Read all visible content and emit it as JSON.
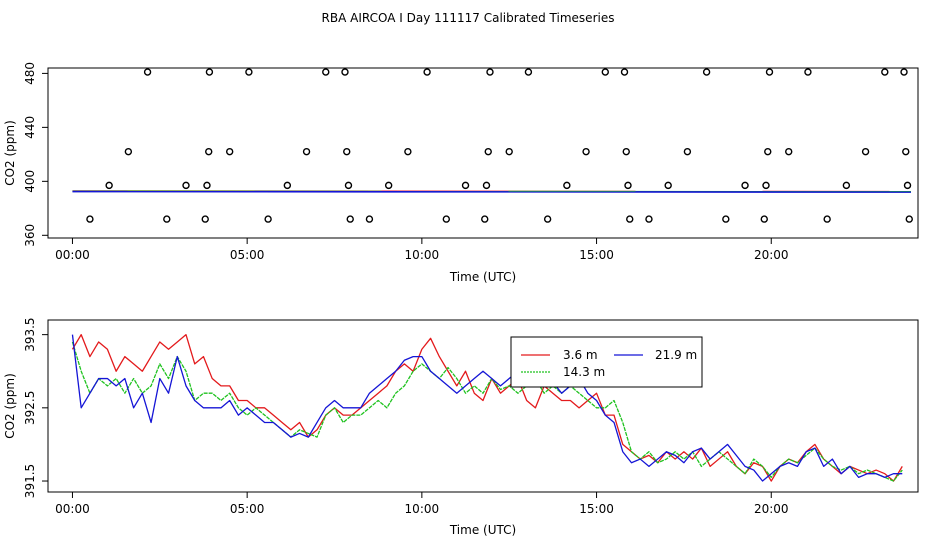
{
  "title": "RBA AIRCOA I  Day 111117  Calibrated Timeseries",
  "colors": {
    "red": "#e31a1c",
    "green": "#1fc21f",
    "blue": "#1515d6",
    "black": "#000000"
  },
  "chart_data": [
    {
      "type": "scatter",
      "xlabel": "Time (UTC)",
      "ylabel": "CO2 (ppm)",
      "xlim": [
        -0.7,
        24.2
      ],
      "ylim": [
        358,
        484
      ],
      "xticks": [
        0,
        5,
        10,
        15,
        20
      ],
      "xtick_labels": [
        "00:00",
        "05:00",
        "10:00",
        "15:00",
        "20:00"
      ],
      "yticks": [
        360,
        400,
        440,
        480
      ],
      "yticks_labels": [
        "360",
        "400",
        "440",
        "480"
      ],
      "points": [
        {
          "x": 0.5,
          "y": 372
        },
        {
          "x": 1.05,
          "y": 397
        },
        {
          "x": 1.6,
          "y": 422
        },
        {
          "x": 2.15,
          "y": 481
        },
        {
          "x": 2.7,
          "y": 372
        },
        {
          "x": 3.25,
          "y": 397
        },
        {
          "x": 3.8,
          "y": 372
        },
        {
          "x": 3.85,
          "y": 397
        },
        {
          "x": 3.9,
          "y": 422
        },
        {
          "x": 3.92,
          "y": 481
        },
        {
          "x": 4.5,
          "y": 422
        },
        {
          "x": 5.05,
          "y": 481
        },
        {
          "x": 5.6,
          "y": 372
        },
        {
          "x": 6.15,
          "y": 397
        },
        {
          "x": 6.7,
          "y": 422
        },
        {
          "x": 7.25,
          "y": 481
        },
        {
          "x": 7.8,
          "y": 481
        },
        {
          "x": 7.85,
          "y": 422
        },
        {
          "x": 7.9,
          "y": 397
        },
        {
          "x": 7.95,
          "y": 372
        },
        {
          "x": 8.5,
          "y": 372
        },
        {
          "x": 9.05,
          "y": 397
        },
        {
          "x": 9.6,
          "y": 422
        },
        {
          "x": 10.15,
          "y": 481
        },
        {
          "x": 10.7,
          "y": 372
        },
        {
          "x": 11.25,
          "y": 397
        },
        {
          "x": 11.8,
          "y": 372
        },
        {
          "x": 11.85,
          "y": 397
        },
        {
          "x": 11.9,
          "y": 422
        },
        {
          "x": 11.95,
          "y": 481
        },
        {
          "x": 12.5,
          "y": 422
        },
        {
          "x": 13.05,
          "y": 481
        },
        {
          "x": 13.6,
          "y": 372
        },
        {
          "x": 14.15,
          "y": 397
        },
        {
          "x": 14.7,
          "y": 422
        },
        {
          "x": 15.25,
          "y": 481
        },
        {
          "x": 15.8,
          "y": 481
        },
        {
          "x": 15.85,
          "y": 422
        },
        {
          "x": 15.9,
          "y": 397
        },
        {
          "x": 15.95,
          "y": 372
        },
        {
          "x": 16.5,
          "y": 372
        },
        {
          "x": 17.05,
          "y": 397
        },
        {
          "x": 17.6,
          "y": 422
        },
        {
          "x": 18.15,
          "y": 481
        },
        {
          "x": 18.7,
          "y": 372
        },
        {
          "x": 19.25,
          "y": 397
        },
        {
          "x": 19.8,
          "y": 372
        },
        {
          "x": 19.85,
          "y": 397
        },
        {
          "x": 19.9,
          "y": 422
        },
        {
          "x": 19.95,
          "y": 481
        },
        {
          "x": 20.5,
          "y": 422
        },
        {
          "x": 21.05,
          "y": 481
        },
        {
          "x": 21.6,
          "y": 372
        },
        {
          "x": 22.15,
          "y": 397
        },
        {
          "x": 22.7,
          "y": 422
        },
        {
          "x": 23.25,
          "y": 481
        },
        {
          "x": 23.8,
          "y": 481
        },
        {
          "x": 23.85,
          "y": 422
        },
        {
          "x": 23.9,
          "y": 397
        },
        {
          "x": 23.95,
          "y": 372
        }
      ],
      "lines": [
        {
          "name": "3.6 m",
          "color": "red",
          "x": [
            0,
            24
          ],
          "y": [
            392.8,
            392.3
          ]
        },
        {
          "name": "14.3 m",
          "color": "green",
          "x": [
            0,
            24
          ],
          "y": [
            392.6,
            392.2
          ]
        },
        {
          "name": "21.9 m",
          "color": "blue",
          "x": [
            0,
            24
          ],
          "y": [
            392.4,
            392.0
          ]
        }
      ]
    },
    {
      "type": "line",
      "xlabel": "Time (UTC)",
      "ylabel": "CO2 (ppm)",
      "xlim": [
        -0.7,
        24.2
      ],
      "ylim": [
        391.35,
        393.7
      ],
      "xticks": [
        0,
        5,
        10,
        15,
        20
      ],
      "xtick_labels": [
        "00:00",
        "05:00",
        "10:00",
        "15:00",
        "20:00"
      ],
      "yticks": [
        391.5,
        392.5,
        393.5
      ],
      "yticks_labels": [
        "391.5",
        "392.5",
        "393.5"
      ],
      "legend": {
        "position": "center-right",
        "entries": [
          {
            "label": "3.6 m",
            "color": "red"
          },
          {
            "label": "21.9 m",
            "color": "blue"
          },
          {
            "label": "14.3 m",
            "color": "green"
          }
        ]
      },
      "series": [
        {
          "name": "3.6 m",
          "color": "red",
          "x": [
            0,
            0.25,
            0.5,
            0.75,
            1,
            1.25,
            1.5,
            1.75,
            2,
            2.25,
            2.5,
            2.75,
            3,
            3.25,
            3.5,
            3.75,
            4,
            4.25,
            4.5,
            4.75,
            5,
            5.25,
            5.5,
            5.75,
            6,
            6.25,
            6.5,
            6.75,
            7,
            7.25,
            7.5,
            7.75,
            8,
            8.25,
            8.5,
            8.75,
            9,
            9.25,
            9.5,
            9.75,
            10,
            10.25,
            10.5,
            10.75,
            11,
            11.25,
            11.5,
            11.75,
            12,
            12.25,
            12.5,
            12.75,
            13,
            13.25,
            13.5,
            13.75,
            14,
            14.25,
            14.5,
            14.75,
            15,
            15.25,
            15.5,
            15.75,
            16,
            16.25,
            16.5,
            16.75,
            17,
            17.25,
            17.5,
            17.75,
            18,
            18.25,
            18.5,
            18.75,
            19,
            19.25,
            19.5,
            19.75,
            20,
            20.25,
            20.5,
            20.75,
            21,
            21.25,
            21.5,
            21.75,
            22,
            22.25,
            22.5,
            22.75,
            23,
            23.25,
            23.5,
            23.75
          ],
          "y": [
            393.3,
            393.5,
            393.2,
            393.4,
            393.3,
            393.0,
            393.2,
            393.1,
            393.0,
            393.2,
            393.4,
            393.3,
            393.4,
            393.5,
            393.1,
            393.2,
            392.9,
            392.8,
            392.8,
            392.6,
            392.6,
            392.5,
            392.5,
            392.4,
            392.3,
            392.2,
            392.3,
            392.1,
            392.2,
            392.4,
            392.5,
            392.4,
            392.4,
            392.5,
            392.6,
            392.7,
            392.8,
            393.0,
            393.1,
            393.0,
            393.3,
            393.45,
            393.2,
            393.0,
            392.8,
            393.0,
            392.7,
            392.6,
            392.9,
            392.7,
            392.8,
            392.9,
            392.6,
            392.5,
            392.8,
            392.7,
            392.6,
            392.6,
            392.5,
            392.6,
            392.7,
            392.4,
            392.4,
            392.0,
            391.9,
            391.8,
            391.85,
            391.75,
            391.9,
            391.8,
            391.9,
            391.8,
            391.95,
            391.7,
            391.8,
            391.9,
            391.7,
            391.6,
            391.75,
            391.7,
            391.5,
            391.7,
            391.8,
            391.75,
            391.9,
            392.0,
            391.8,
            391.7,
            391.6,
            391.7,
            391.65,
            391.6,
            391.65,
            391.6,
            391.5,
            391.7
          ]
        },
        {
          "name": "14.3 m",
          "color": "green",
          "x": [
            0,
            0.25,
            0.5,
            0.75,
            1,
            1.25,
            1.5,
            1.75,
            2,
            2.25,
            2.5,
            2.75,
            3,
            3.25,
            3.5,
            3.75,
            4,
            4.25,
            4.5,
            4.75,
            5,
            5.25,
            5.5,
            5.75,
            6,
            6.25,
            6.5,
            6.75,
            7,
            7.25,
            7.5,
            7.75,
            8,
            8.25,
            8.5,
            8.75,
            9,
            9.25,
            9.5,
            9.75,
            10,
            10.25,
            10.5,
            10.75,
            11,
            11.25,
            11.5,
            11.75,
            12,
            12.25,
            12.5,
            12.75,
            13,
            13.25,
            13.5,
            13.75,
            14,
            14.25,
            14.5,
            14.75,
            15,
            15.25,
            15.5,
            15.75,
            16,
            16.25,
            16.5,
            16.75,
            17,
            17.25,
            17.5,
            17.75,
            18,
            18.25,
            18.5,
            18.75,
            19,
            19.25,
            19.5,
            19.75,
            20,
            20.25,
            20.5,
            20.75,
            21,
            21.25,
            21.5,
            21.75,
            22,
            22.25,
            22.5,
            22.75,
            23,
            23.25,
            23.5,
            23.75
          ],
          "y": [
            393.4,
            393.0,
            392.7,
            392.9,
            392.8,
            392.9,
            392.7,
            392.9,
            392.7,
            392.8,
            393.1,
            392.9,
            393.2,
            393.0,
            392.6,
            392.7,
            392.7,
            392.6,
            392.7,
            392.5,
            392.4,
            392.5,
            392.4,
            392.3,
            392.2,
            392.1,
            392.2,
            392.15,
            392.1,
            392.4,
            392.5,
            392.3,
            392.4,
            392.4,
            392.5,
            392.6,
            392.5,
            392.7,
            392.8,
            393.0,
            393.1,
            393.0,
            392.9,
            393.05,
            392.9,
            392.7,
            392.8,
            392.7,
            392.9,
            392.75,
            392.8,
            392.7,
            392.8,
            392.9,
            392.7,
            392.8,
            392.7,
            392.8,
            392.7,
            392.6,
            392.5,
            392.5,
            392.6,
            392.3,
            391.9,
            391.8,
            391.9,
            391.75,
            391.8,
            391.9,
            391.8,
            391.9,
            391.7,
            391.8,
            391.9,
            391.8,
            391.7,
            391.6,
            391.8,
            391.7,
            391.55,
            391.7,
            391.8,
            391.75,
            391.85,
            391.95,
            391.8,
            391.7,
            391.65,
            391.7,
            391.6,
            391.65,
            391.6,
            391.55,
            391.5,
            391.65
          ]
        },
        {
          "name": "21.9 m",
          "color": "blue",
          "x": [
            0,
            0.25,
            0.5,
            0.75,
            1,
            1.25,
            1.5,
            1.75,
            2,
            2.25,
            2.5,
            2.75,
            3,
            3.25,
            3.5,
            3.75,
            4,
            4.25,
            4.5,
            4.75,
            5,
            5.25,
            5.5,
            5.75,
            6,
            6.25,
            6.5,
            6.75,
            7,
            7.25,
            7.5,
            7.75,
            8,
            8.25,
            8.5,
            8.75,
            9,
            9.25,
            9.5,
            9.75,
            10,
            10.25,
            10.5,
            10.75,
            11,
            11.25,
            11.5,
            11.75,
            12,
            12.25,
            12.5,
            12.75,
            13,
            13.25,
            13.5,
            13.75,
            14,
            14.25,
            14.5,
            14.75,
            15,
            15.25,
            15.5,
            15.75,
            16,
            16.25,
            16.5,
            16.75,
            17,
            17.25,
            17.5,
            17.75,
            18,
            18.25,
            18.5,
            18.75,
            19,
            19.25,
            19.5,
            19.75,
            20,
            20.25,
            20.5,
            20.75,
            21,
            21.25,
            21.5,
            21.75,
            22,
            22.25,
            22.5,
            22.75,
            23,
            23.25,
            23.5,
            23.75
          ],
          "y": [
            393.5,
            392.5,
            392.7,
            392.9,
            392.9,
            392.8,
            392.9,
            392.5,
            392.7,
            392.3,
            392.9,
            392.7,
            393.2,
            392.8,
            392.6,
            392.5,
            392.5,
            392.5,
            392.6,
            392.4,
            392.5,
            392.4,
            392.3,
            392.3,
            392.2,
            392.1,
            392.15,
            392.1,
            392.3,
            392.5,
            392.6,
            392.5,
            392.5,
            392.5,
            392.7,
            392.8,
            392.9,
            393.0,
            393.15,
            393.2,
            393.2,
            393.0,
            392.9,
            392.8,
            392.7,
            392.8,
            392.9,
            393.0,
            392.9,
            392.8,
            392.9,
            393.0,
            392.85,
            392.9,
            392.8,
            392.85,
            392.7,
            392.8,
            392.9,
            392.7,
            392.6,
            392.4,
            392.3,
            391.9,
            391.75,
            391.8,
            391.7,
            391.8,
            391.9,
            391.85,
            391.75,
            391.9,
            391.95,
            391.8,
            391.9,
            392.0,
            391.85,
            391.7,
            391.65,
            391.5,
            391.6,
            391.7,
            391.75,
            391.7,
            391.9,
            391.95,
            391.7,
            391.8,
            391.6,
            391.7,
            391.55,
            391.6,
            391.6,
            391.55,
            391.6,
            391.6
          ]
        }
      ]
    }
  ]
}
